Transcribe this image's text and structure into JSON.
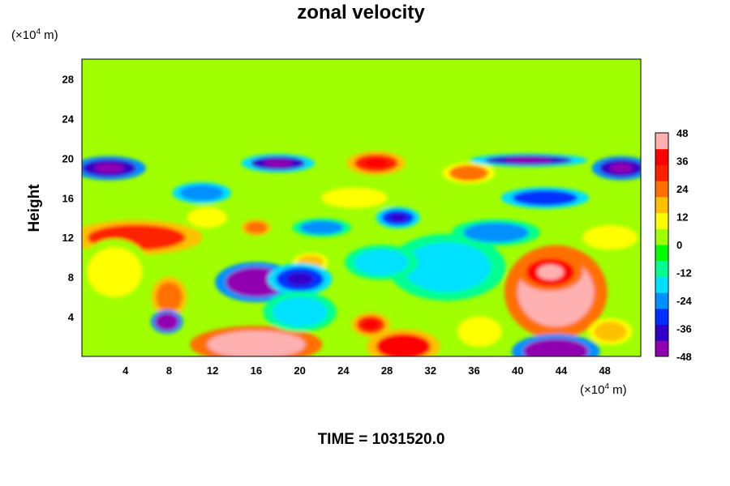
{
  "chart_data": {
    "type": "heatmap",
    "title": "zonal velocity",
    "ylabel": "Height",
    "x_unit": {
      "prefix": "(×10",
      "exp": "4",
      "suffix": " m)"
    },
    "y_unit": {
      "prefix": "(×10",
      "exp": "4",
      "suffix": " m)"
    },
    "xlim": [
      0,
      51.3
    ],
    "ylim": [
      0,
      30
    ],
    "x_ticks": [
      4,
      8,
      12,
      16,
      20,
      24,
      28,
      32,
      36,
      40,
      44,
      48
    ],
    "y_ticks": [
      4,
      8,
      12,
      16,
      20,
      24,
      28
    ],
    "colorbar": {
      "min": -48,
      "max": 48,
      "ticks": [
        48,
        36,
        24,
        12,
        0,
        -12,
        -24,
        -36,
        -48
      ],
      "colors": [
        "#9000b0",
        "#3000c8",
        "#0030ff",
        "#0090ff",
        "#00e0ff",
        "#00ff90",
        "#00ff00",
        "#a0ff00",
        "#ffff00",
        "#ffc000",
        "#ff7000",
        "#ff2000",
        "#ff0000",
        "#ffb0b0"
      ]
    },
    "background_value": 0,
    "features": [
      {
        "x": 43.5,
        "y": 6.5,
        "rx": 3.5,
        "ry": 3.5,
        "value": 48
      },
      {
        "x": 43.0,
        "y": 8.5,
        "rx": 2.2,
        "ry": 1.4,
        "value": 38
      },
      {
        "x": 16.0,
        "y": 1.2,
        "rx": 4.5,
        "ry": 1.4,
        "value": 45
      },
      {
        "x": 29.5,
        "y": 1.0,
        "rx": 2.5,
        "ry": 1.3,
        "value": 35
      },
      {
        "x": 26.5,
        "y": 3.2,
        "rx": 1.3,
        "ry": 0.9,
        "value": 30
      },
      {
        "x": 5.0,
        "y": 12.0,
        "rx": 4.5,
        "ry": 1.3,
        "value": 28
      },
      {
        "x": 27.0,
        "y": 19.5,
        "rx": 2.0,
        "ry": 0.9,
        "value": 30
      },
      {
        "x": 35.5,
        "y": 18.5,
        "rx": 1.8,
        "ry": 0.8,
        "value": 22
      },
      {
        "x": 8.0,
        "y": 6.0,
        "rx": 1.2,
        "ry": 1.5,
        "value": 25
      },
      {
        "x": 16.0,
        "y": 13.0,
        "rx": 1.0,
        "ry": 0.6,
        "value": 25
      },
      {
        "x": 21.0,
        "y": 9.5,
        "rx": 1.2,
        "ry": 0.7,
        "value": 18
      },
      {
        "x": 48.5,
        "y": 2.5,
        "rx": 1.5,
        "ry": 1.0,
        "value": 18
      },
      {
        "x": 16.0,
        "y": 7.5,
        "rx": 2.8,
        "ry": 1.5,
        "value": -44
      },
      {
        "x": 20.0,
        "y": 7.8,
        "rx": 2.2,
        "ry": 1.2,
        "value": -32
      },
      {
        "x": 7.8,
        "y": 3.5,
        "rx": 1.1,
        "ry": 0.9,
        "value": -42
      },
      {
        "x": 43.5,
        "y": 0.5,
        "rx": 3.0,
        "ry": 1.3,
        "value": -48
      },
      {
        "x": 2.5,
        "y": 19.0,
        "rx": 2.5,
        "ry": 0.9,
        "value": -38
      },
      {
        "x": 18.0,
        "y": 19.5,
        "rx": 2.5,
        "ry": 0.7,
        "value": -36
      },
      {
        "x": 41.0,
        "y": 19.8,
        "rx": 4.0,
        "ry": 0.5,
        "value": -36
      },
      {
        "x": 49.5,
        "y": 19.0,
        "rx": 2.0,
        "ry": 0.9,
        "value": -40
      },
      {
        "x": 29.0,
        "y": 14.0,
        "rx": 1.5,
        "ry": 0.8,
        "value": -34
      },
      {
        "x": 42.5,
        "y": 16.0,
        "rx": 3.0,
        "ry": 0.8,
        "value": -28
      },
      {
        "x": 11.0,
        "y": 16.5,
        "rx": 2.0,
        "ry": 0.8,
        "value": -26
      },
      {
        "x": 22.0,
        "y": 13.0,
        "rx": 2.0,
        "ry": 0.7,
        "value": -22
      },
      {
        "x": 33.5,
        "y": 9.0,
        "rx": 4.0,
        "ry": 2.5,
        "value": -14
      },
      {
        "x": 27.5,
        "y": 9.5,
        "rx": 2.5,
        "ry": 1.3,
        "value": -18
      },
      {
        "x": 38.0,
        "y": 12.5,
        "rx": 3.0,
        "ry": 1.0,
        "value": -24
      },
      {
        "x": 20.0,
        "y": 4.5,
        "rx": 2.5,
        "ry": 1.5,
        "value": -16
      },
      {
        "x": 11.5,
        "y": 14.0,
        "rx": 1.8,
        "ry": 1.0,
        "value": 12
      },
      {
        "x": 3.0,
        "y": 8.5,
        "rx": 2.5,
        "ry": 2.5,
        "value": 10
      },
      {
        "x": 36.5,
        "y": 2.5,
        "rx": 2.0,
        "ry": 1.5,
        "value": 8
      },
      {
        "x": 48.5,
        "y": 12.0,
        "rx": 2.5,
        "ry": 1.2,
        "value": 10
      },
      {
        "x": 25.0,
        "y": 16.0,
        "rx": 3.0,
        "ry": 1.0,
        "value": 10
      }
    ],
    "time_label": "TIME = 1031520.0"
  }
}
